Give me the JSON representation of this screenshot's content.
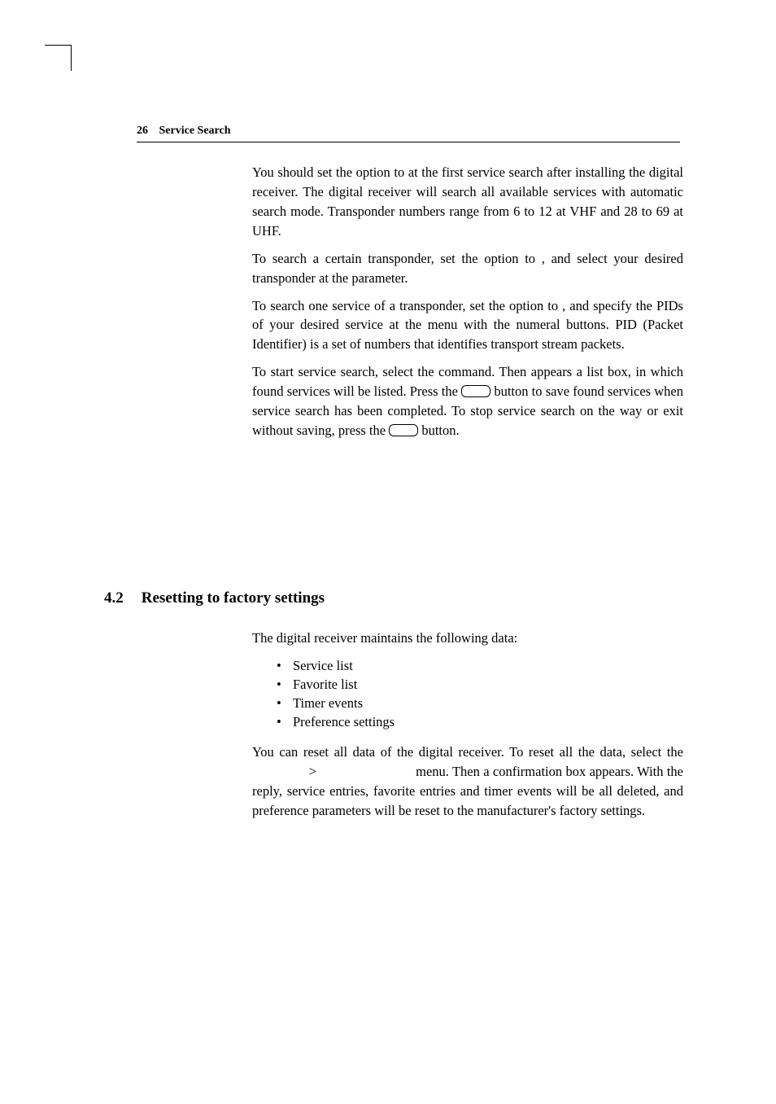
{
  "header": {
    "page_number": "26",
    "title": "Service Search"
  },
  "para1": {
    "t1": "You should set the ",
    "t2": " option to ",
    "t3": " at the first service search after installing the digital receiver. The digital receiver will search all available services with automatic search mode. Transponder numbers range from 6 to 12 at VHF and 28 to 69 at UHF."
  },
  "para2": {
    "t1": "To search a certain transponder, set the ",
    "t2": " option to ",
    "t3": ", and select your desired transponder at the ",
    "t4": " parameter."
  },
  "para3": {
    "t1": "To search one service of a transponder, set the ",
    "t2": " option to ",
    "t3": ", and specify the PIDs of your desired service at the ",
    "t4": " menu with the numeral buttons. PID (Packet Identifier) is a set of numbers that identifies transport stream packets."
  },
  "para4": {
    "t1": "To start service search, select the ",
    "t2": " command. Then appears a list box, in which found services will be listed. Press the ",
    "t3": " button to save found services when service search has been completed. To stop service search on the way or exit without saving, press the ",
    "t4": " button."
  },
  "section42": {
    "number": "4.2",
    "title": "Resetting to factory settings"
  },
  "para5": {
    "t1": "The digital receiver maintains the following data:"
  },
  "bullets": {
    "b1": "Service list",
    "b2": "Favorite list",
    "b3": "Timer events",
    "b4": "Preference settings"
  },
  "para6": {
    "t1": "You can reset all data of the digital receiver. To reset all the data, select the ",
    "gt": ">",
    "t2": " menu. Then a confirmation box appears. With the ",
    "t3": " reply, service entries, favorite entries and timer events will be all deleted, and preference parameters will be reset to the manufacturer's factory settings."
  }
}
